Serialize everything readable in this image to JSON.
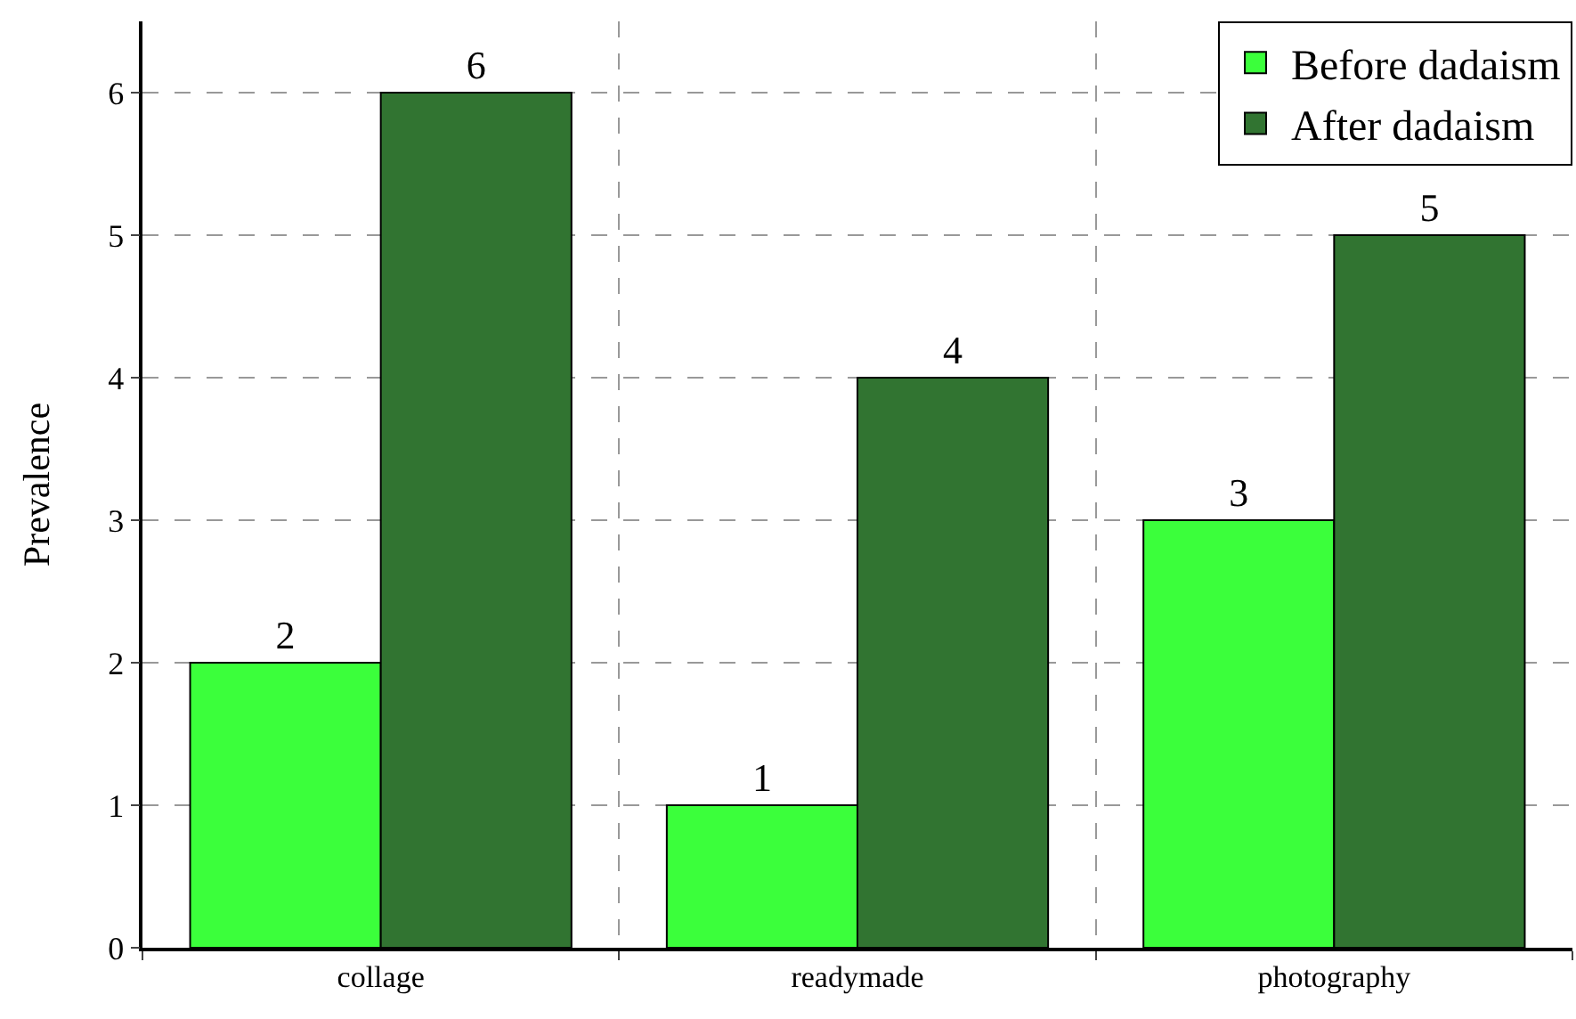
{
  "chart_data": {
    "type": "bar",
    "ylabel": "Prevalence",
    "categories": [
      "collage",
      "readymade",
      "photography"
    ],
    "series": [
      {
        "name": "Before dadaism",
        "color": "#3bff3b",
        "values": [
          2,
          1,
          3
        ]
      },
      {
        "name": "After dadaism",
        "color": "#317431",
        "values": [
          6,
          4,
          5
        ]
      }
    ],
    "ylim": [
      0,
      6.5
    ],
    "yticks": [
      0,
      1,
      2,
      3,
      4,
      5,
      6
    ],
    "grid": true,
    "legend": "top right",
    "data_labels": true
  }
}
